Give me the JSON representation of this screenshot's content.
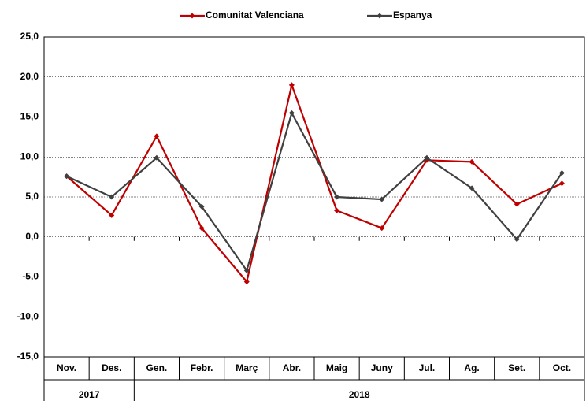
{
  "chart_data": {
    "type": "line",
    "categories": [
      "Nov.",
      "Des.",
      "Gen.",
      "Febr.",
      "Març",
      "Abr.",
      "Maig",
      "Juny",
      "Jul.",
      "Ag.",
      "Set.",
      "Oct."
    ],
    "x_groups": [
      {
        "label": "2017",
        "count": 2
      },
      {
        "label": "2018",
        "count": 10
      }
    ],
    "series": [
      {
        "name": "Comunitat Valenciana",
        "color": "#c00000",
        "values": [
          7.6,
          2.7,
          12.6,
          1.1,
          -5.6,
          19.0,
          3.3,
          1.1,
          9.6,
          9.4,
          4.1,
          6.7
        ]
      },
      {
        "name": "Espanya",
        "color": "#404040",
        "values": [
          7.6,
          5.0,
          9.9,
          3.8,
          -4.2,
          15.5,
          5.0,
          4.7,
          9.9,
          6.1,
          -0.3,
          8.0
        ]
      }
    ],
    "ylim": [
      -15,
      25
    ],
    "yticks": [
      {
        "value": -15,
        "label": "-15,0"
      },
      {
        "value": -10,
        "label": "-10,0"
      },
      {
        "value": -5,
        "label": "-5,0"
      },
      {
        "value": 0,
        "label": "0,0"
      },
      {
        "value": 5,
        "label": "5,0"
      },
      {
        "value": 10,
        "label": "10,0"
      },
      {
        "value": 15,
        "label": "15,0"
      },
      {
        "value": 20,
        "label": "20,0"
      },
      {
        "value": 25,
        "label": "25,0"
      }
    ],
    "grid": true,
    "legend": "top"
  }
}
